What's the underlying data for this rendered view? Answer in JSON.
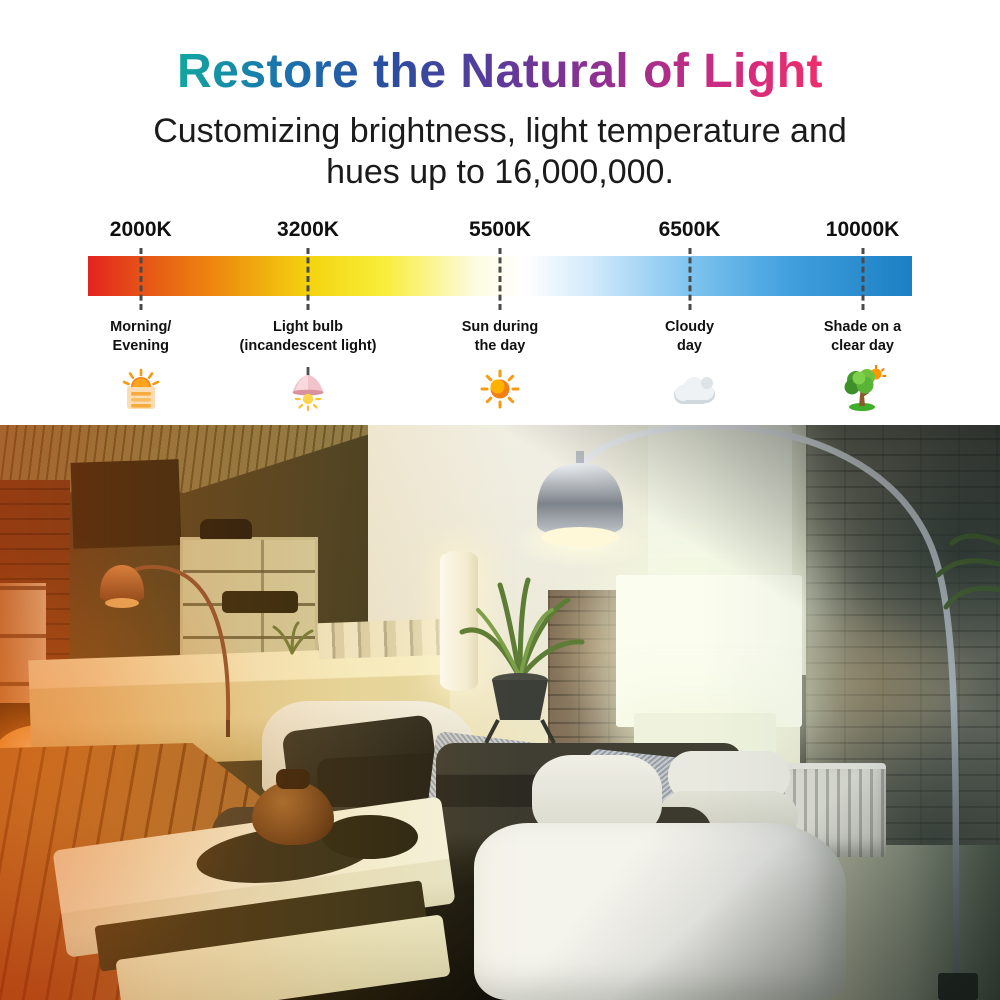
{
  "header": {
    "title": "Restore the Natural of Light",
    "title_gradient": [
      "#12a7a0",
      "#1b72ae",
      "#2b4d9f",
      "#5d3a9b",
      "#93308f",
      "#c92c83",
      "#f02d6b"
    ],
    "subtitle_line1": "Customizing brightness, light temperature and",
    "subtitle_line2": "hues up to 16,000,000."
  },
  "scale": {
    "gradient_stops": [
      {
        "pos": 0,
        "color": "#e42320"
      },
      {
        "pos": 6,
        "color": "#e64f18"
      },
      {
        "pos": 16,
        "color": "#ee8c0e"
      },
      {
        "pos": 27,
        "color": "#f4d410"
      },
      {
        "pos": 36,
        "color": "#f8ee3a"
      },
      {
        "pos": 47,
        "color": "#fdfbe0"
      },
      {
        "pos": 53,
        "color": "#ffffff"
      },
      {
        "pos": 61,
        "color": "#d2eafb"
      },
      {
        "pos": 73,
        "color": "#7fc4ef"
      },
      {
        "pos": 85,
        "color": "#41a0de"
      },
      {
        "pos": 100,
        "color": "#1b7fc4"
      }
    ],
    "stops": [
      {
        "kelvin": "2000K",
        "label_line1": "Morning/",
        "label_line2": "Evening",
        "icon": "sunrise-icon",
        "position_pct": 6.4
      },
      {
        "kelvin": "3200K",
        "label_line1": "Light bulb",
        "label_line2": "(incandescent light)",
        "icon": "pendant-lamp-icon",
        "position_pct": 26.7
      },
      {
        "kelvin": "5500K",
        "label_line1": "Sun during",
        "label_line2": "the day",
        "icon": "sun-icon",
        "position_pct": 50
      },
      {
        "kelvin": "6500K",
        "label_line1": "Cloudy",
        "label_line2": "day",
        "icon": "cloud-icon",
        "position_pct": 73
      },
      {
        "kelvin": "10000K",
        "label_line1": "Shade on a",
        "label_line2": "clear day",
        "icon": "tree-icon",
        "position_pct": 94
      }
    ]
  },
  "photo": {
    "subject": "Living room lit warm orange on the left and cool white on the right, with chrome arc floor lamp, brick wall, glowing wall panels, sectional sofa and white coffee table"
  }
}
